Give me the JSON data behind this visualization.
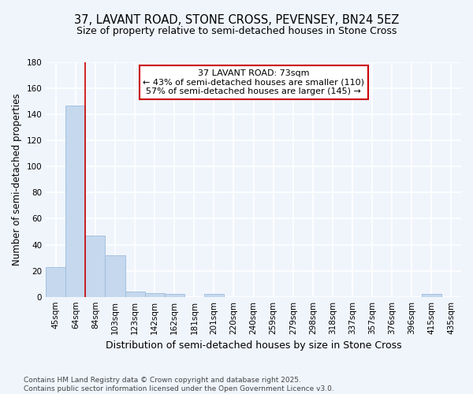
{
  "title": "37, LAVANT ROAD, STONE CROSS, PEVENSEY, BN24 5EZ",
  "subtitle": "Size of property relative to semi-detached houses in Stone Cross",
  "xlabel": "Distribution of semi-detached houses by size in Stone Cross",
  "ylabel": "Number of semi-detached properties",
  "categories": [
    "45sqm",
    "64sqm",
    "84sqm",
    "103sqm",
    "123sqm",
    "142sqm",
    "162sqm",
    "181sqm",
    "201sqm",
    "220sqm",
    "240sqm",
    "259sqm",
    "279sqm",
    "298sqm",
    "318sqm",
    "337sqm",
    "357sqm",
    "376sqm",
    "396sqm",
    "415sqm",
    "435sqm"
  ],
  "values": [
    23,
    147,
    47,
    32,
    4,
    3,
    2,
    0,
    2,
    0,
    0,
    0,
    0,
    0,
    0,
    0,
    0,
    0,
    0,
    2,
    0
  ],
  "bar_color": "#c5d8ee",
  "bar_edge_color": "#9bbcdb",
  "background_color": "#f0f5fc",
  "grid_color": "#ffffff",
  "red_line_x": 1.5,
  "annotation_title": "37 LAVANT ROAD: 73sqm",
  "annotation_line1": "← 43% of semi-detached houses are smaller (110)",
  "annotation_line2": "57% of semi-detached houses are larger (145) →",
  "annotation_box_color": "#ffffff",
  "annotation_box_edge": "#cc0000",
  "red_line_color": "#cc0000",
  "footer_line1": "Contains HM Land Registry data © Crown copyright and database right 2025.",
  "footer_line2": "Contains public sector information licensed under the Open Government Licence v3.0.",
  "ylim": [
    0,
    180
  ],
  "yticks": [
    0,
    20,
    40,
    60,
    80,
    100,
    120,
    140,
    160,
    180
  ],
  "title_fontsize": 10.5,
  "subtitle_fontsize": 9,
  "ylabel_fontsize": 8.5,
  "xlabel_fontsize": 9,
  "tick_fontsize": 7.5,
  "ann_fontsize": 8,
  "footer_fontsize": 6.5
}
